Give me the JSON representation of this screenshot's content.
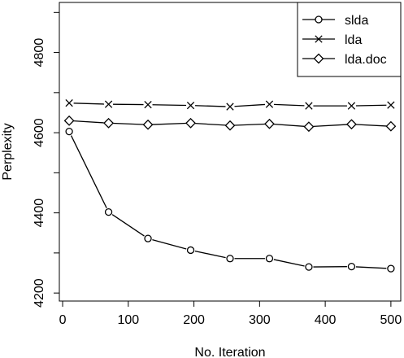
{
  "chart_data": {
    "type": "line",
    "title": "",
    "xlabel": "No. Iteration",
    "ylabel": "Perplexity",
    "xlim": [
      -5,
      515
    ],
    "ylim": [
      4180,
      4925
    ],
    "x_ticks": [
      0,
      100,
      200,
      300,
      400,
      500
    ],
    "y_ticks": [
      4200,
      4300,
      4400,
      4500,
      4600,
      4700,
      4800,
      4900
    ],
    "y_tick_labels": [
      "4200",
      "",
      "4400",
      "",
      "4600",
      "",
      "4800",
      ""
    ],
    "legend_position": "top-right",
    "x": [
      10,
      70,
      130,
      195,
      255,
      315,
      375,
      440,
      500
    ],
    "series": [
      {
        "name": "slda",
        "marker": "circle",
        "values": [
          4603,
          4402,
          4336,
          4307,
          4286,
          4286,
          4265,
          4266,
          4261
        ]
      },
      {
        "name": "lda",
        "marker": "cross",
        "values": [
          4674,
          4671,
          4670,
          4668,
          4665,
          4671,
          4667,
          4667,
          4669
        ]
      },
      {
        "name": "lda.doc",
        "marker": "diamond",
        "values": [
          4630,
          4624,
          4620,
          4624,
          4618,
          4622,
          4615,
          4621,
          4616
        ]
      }
    ]
  }
}
